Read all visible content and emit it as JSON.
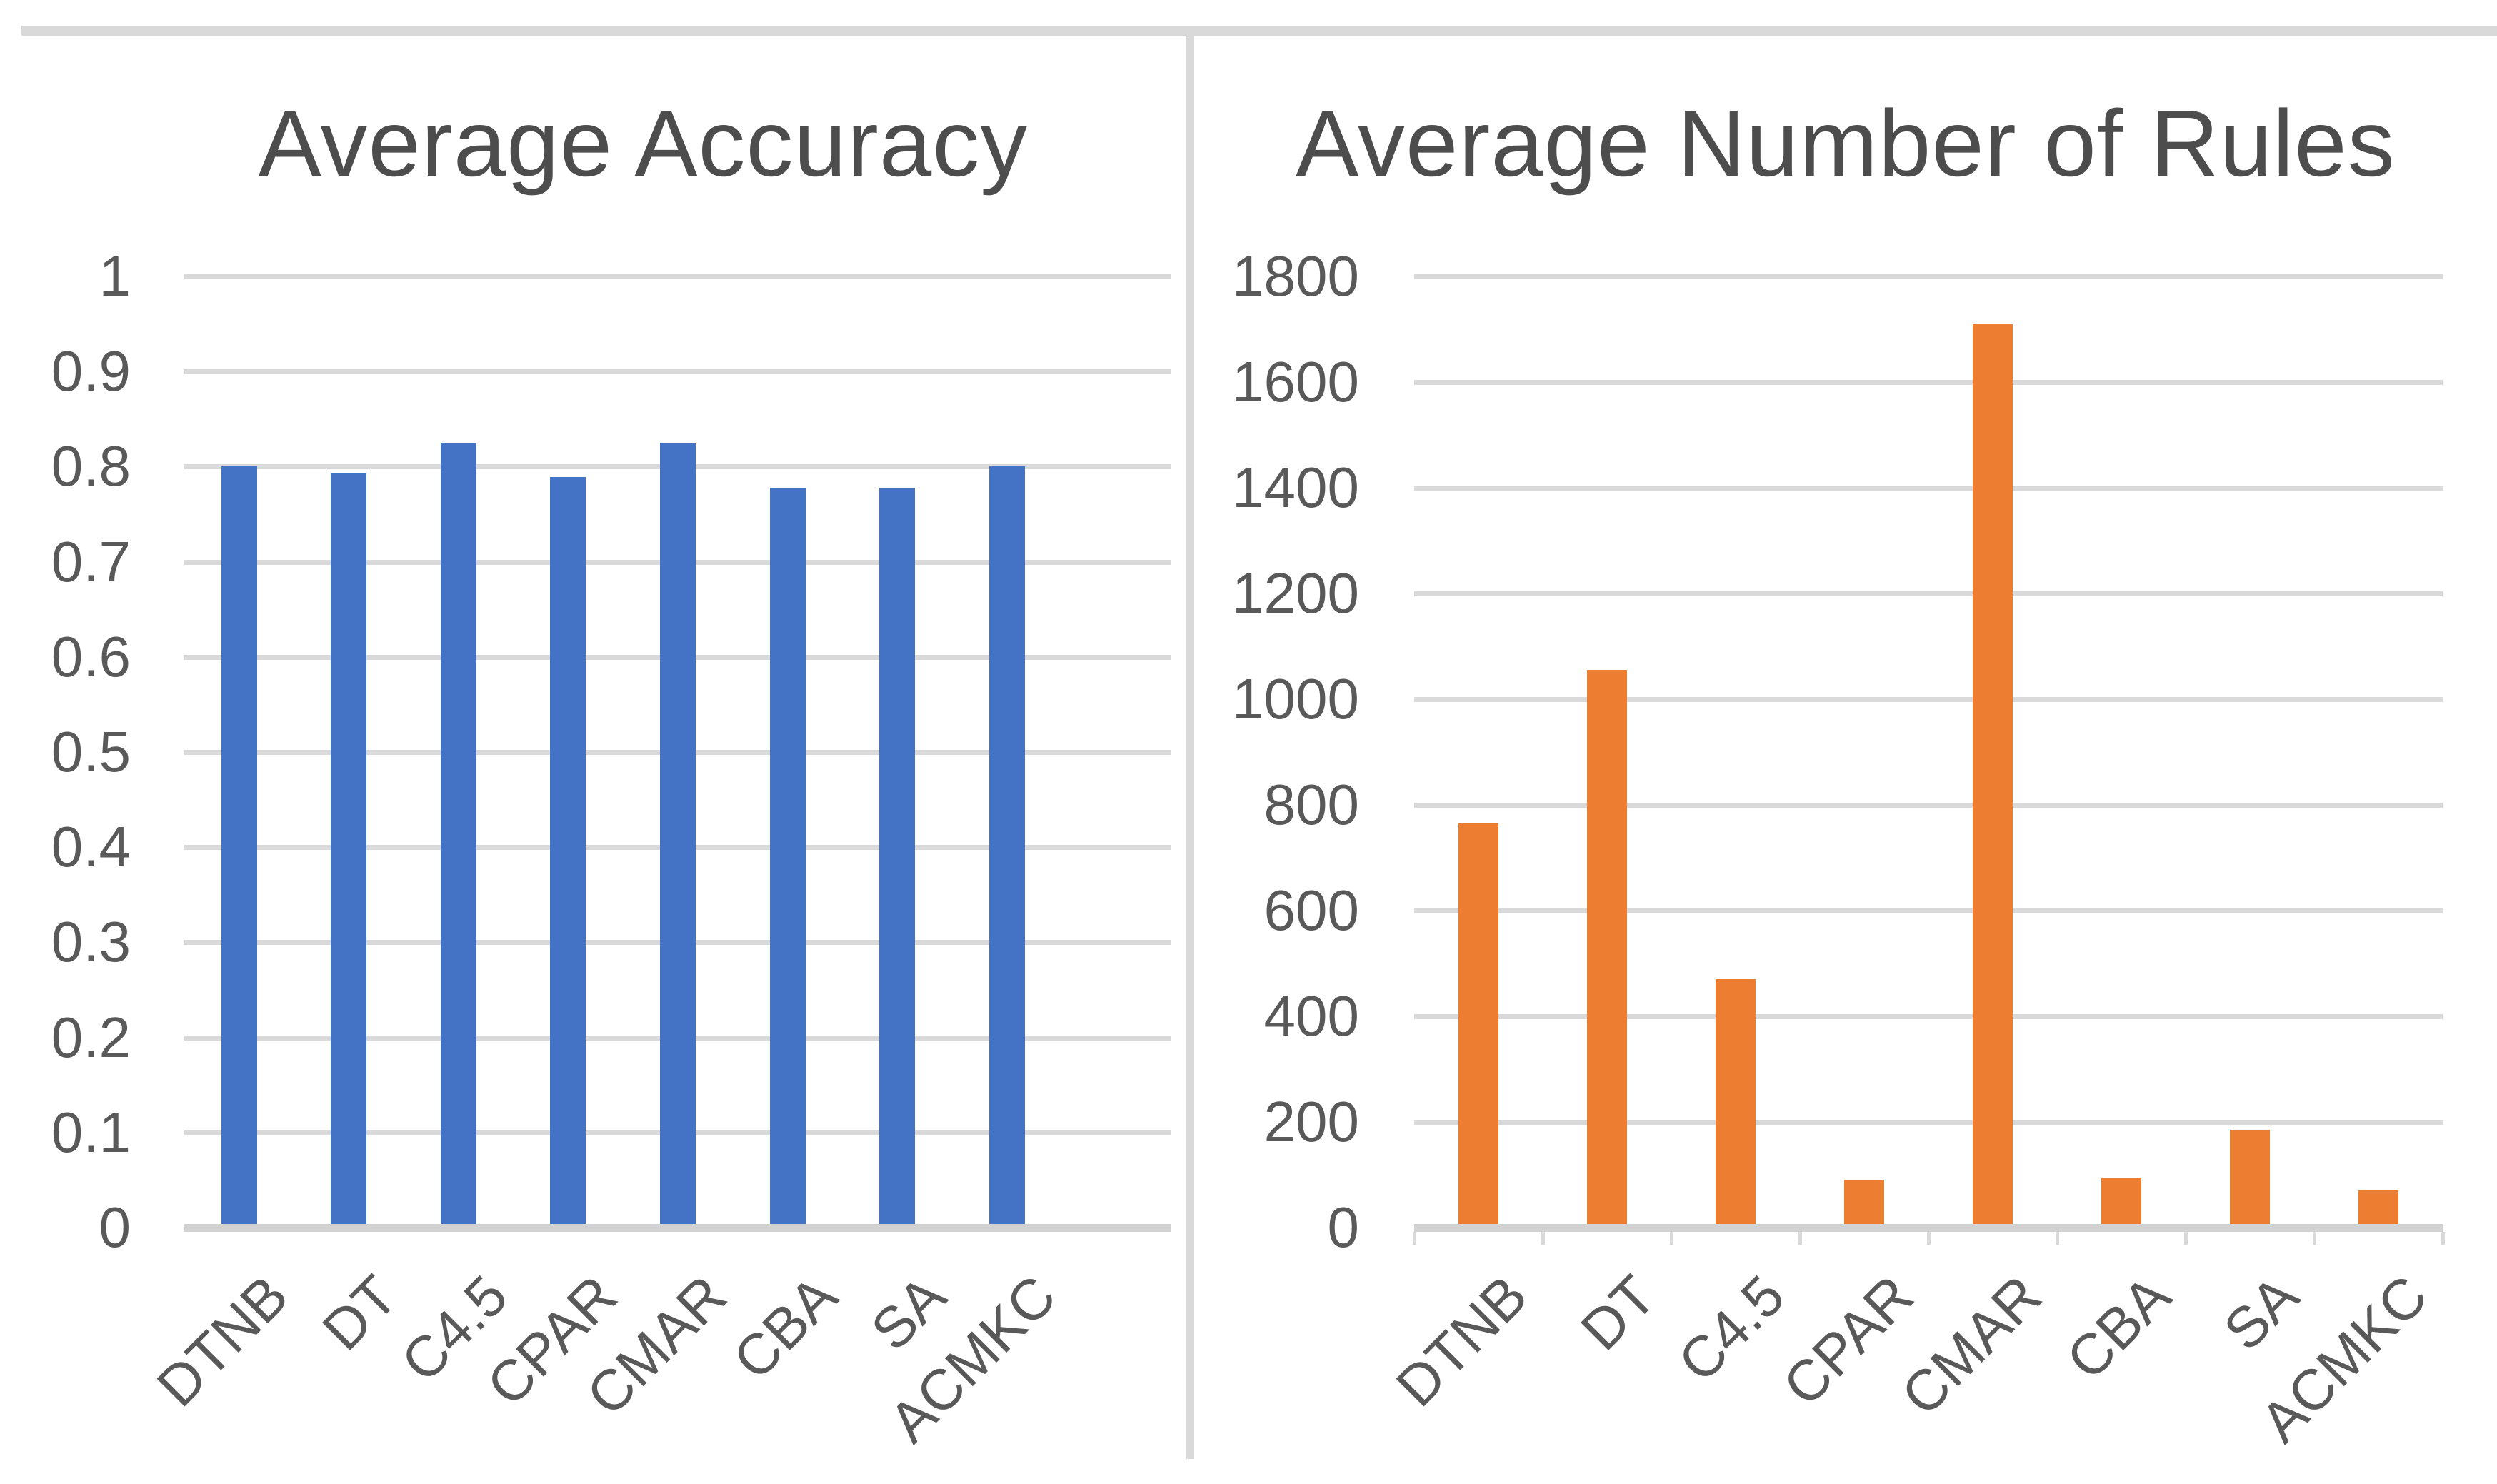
{
  "figure": {
    "kind": "two-panel bar chart figure",
    "background": "#FFFFFF"
  },
  "styles": {
    "gridline_color": "#D9D9D9",
    "axis_line_color": "#D2D2D2",
    "divider_color": "#D9D9D9",
    "top_rule_color": "#D9D9D9",
    "tick_label_color": "#595959",
    "title_color": "#4D4D4D"
  },
  "chart_data": [
    {
      "type": "bar",
      "title": "Average Accuracy",
      "categories": [
        "DTNB",
        "DT",
        "C4.5",
        "CPAR",
        "CMAR",
        "CBA",
        "SA",
        "ACMKC"
      ],
      "values": [
        0.8,
        0.793,
        0.825,
        0.789,
        0.825,
        0.778,
        0.778,
        0.8
      ],
      "ylim": [
        0,
        1
      ],
      "y_tick_labels": [
        "1",
        "0.9",
        "0.8",
        "0.7",
        "0.6",
        "0.5",
        "0.4",
        "0.3",
        "0.2",
        "0.1",
        "0"
      ],
      "bar_color": "#4472C4",
      "grid": true,
      "legend": false,
      "x_axis_tick_marks": false
    },
    {
      "type": "bar",
      "title": "Average Number of Rules",
      "categories": [
        "DTNB",
        "DT",
        "C4.5",
        "CPAR",
        "CMAR",
        "CBA",
        "SA",
        "ACMKC"
      ],
      "values": [
        765,
        1055,
        470,
        90,
        1710,
        95,
        185,
        70
      ],
      "ylim": [
        0,
        1800
      ],
      "y_tick_labels": [
        "1800",
        "1600",
        "1400",
        "1200",
        "1000",
        "800",
        "600",
        "400",
        "200",
        "0"
      ],
      "bar_color": "#ED7D31",
      "grid": true,
      "legend": false,
      "x_axis_tick_marks": true
    }
  ]
}
